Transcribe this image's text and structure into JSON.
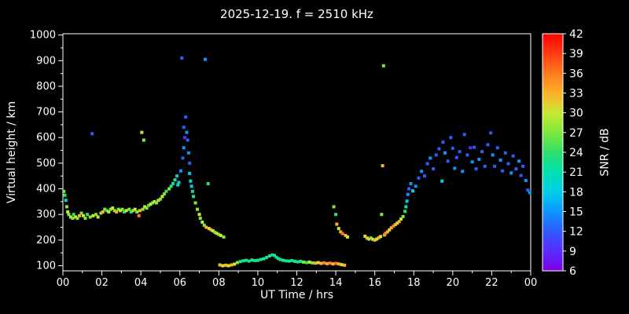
{
  "colors": {
    "background": "#000000",
    "axis": "#ffffff",
    "text": "#ffffff"
  },
  "chart_data": {
    "type": "scatter",
    "title": "2025-12-19. f = 2510 kHz",
    "xlabel": "UT Time / hrs",
    "ylabel": "Virtual height / km",
    "xlim": [
      0,
      24
    ],
    "ylim": [
      80,
      1005
    ],
    "x_ticks": {
      "hours": [
        0,
        2,
        4,
        6,
        8,
        10,
        12,
        14,
        16,
        18,
        20,
        22,
        24
      ],
      "labels": [
        "00",
        "02",
        "04",
        "06",
        "08",
        "10",
        "12",
        "14",
        "16",
        "18",
        "20",
        "22",
        "00"
      ]
    },
    "y_ticks": [
      100,
      200,
      300,
      400,
      500,
      600,
      700,
      800,
      900,
      1000
    ],
    "colorbar": {
      "label": "SNR / dB",
      "min": 6,
      "max": 42,
      "ticks": [
        6,
        9,
        12,
        15,
        18,
        21,
        24,
        27,
        30,
        33,
        36,
        39,
        42
      ],
      "stops": [
        {
          "v": 6,
          "c": "#7d00e0"
        },
        {
          "v": 9,
          "c": "#5a2bff"
        },
        {
          "v": 12,
          "c": "#2e5bff"
        },
        {
          "v": 15,
          "c": "#0b96ff"
        },
        {
          "v": 18,
          "c": "#00cfe8"
        },
        {
          "v": 21,
          "c": "#00e0b0"
        },
        {
          "v": 24,
          "c": "#2ce06a"
        },
        {
          "v": 27,
          "c": "#7fe83c"
        },
        {
          "v": 30,
          "c": "#c8e832"
        },
        {
          "v": 33,
          "c": "#ffb02a"
        },
        {
          "v": 36,
          "c": "#ff7a1e"
        },
        {
          "v": 39,
          "c": "#ff3b14"
        },
        {
          "v": 42,
          "c": "#ff0000"
        }
      ]
    },
    "points": [
      [
        0.05,
        390,
        27
      ],
      [
        0.1,
        375,
        24
      ],
      [
        0.15,
        355,
        21
      ],
      [
        0.2,
        330,
        27
      ],
      [
        0.25,
        310,
        30
      ],
      [
        0.3,
        300,
        27
      ],
      [
        0.4,
        290,
        30
      ],
      [
        0.5,
        285,
        27
      ],
      [
        0.55,
        300,
        24
      ],
      [
        0.65,
        290,
        30
      ],
      [
        0.75,
        285,
        27
      ],
      [
        0.85,
        295,
        33
      ],
      [
        0.95,
        305,
        27
      ],
      [
        1.05,
        295,
        30
      ],
      [
        1.15,
        285,
        27
      ],
      [
        1.25,
        300,
        24
      ],
      [
        1.4,
        290,
        27
      ],
      [
        1.5,
        615,
        12
      ],
      [
        1.55,
        295,
        30
      ],
      [
        1.7,
        300,
        27
      ],
      [
        1.8,
        290,
        30
      ],
      [
        1.95,
        305,
        27
      ],
      [
        2.05,
        310,
        33
      ],
      [
        2.15,
        320,
        27
      ],
      [
        2.25,
        315,
        24
      ],
      [
        2.35,
        310,
        30
      ],
      [
        2.45,
        320,
        27
      ],
      [
        2.55,
        325,
        30
      ],
      [
        2.65,
        315,
        27
      ],
      [
        2.75,
        310,
        33
      ],
      [
        2.85,
        320,
        27
      ],
      [
        2.95,
        315,
        30
      ],
      [
        3.05,
        320,
        27
      ],
      [
        3.15,
        310,
        24
      ],
      [
        3.25,
        315,
        30
      ],
      [
        3.4,
        320,
        27
      ],
      [
        3.5,
        310,
        24
      ],
      [
        3.6,
        315,
        27
      ],
      [
        3.7,
        320,
        30
      ],
      [
        3.8,
        310,
        27
      ],
      [
        3.9,
        295,
        36
      ],
      [
        3.95,
        315,
        33
      ],
      [
        4.05,
        620,
        30
      ],
      [
        4.15,
        590,
        27
      ],
      [
        4.1,
        320,
        27
      ],
      [
        4.2,
        330,
        30
      ],
      [
        4.3,
        325,
        27
      ],
      [
        4.4,
        335,
        24
      ],
      [
        4.5,
        340,
        30
      ],
      [
        4.6,
        345,
        27
      ],
      [
        4.7,
        350,
        30
      ],
      [
        4.8,
        345,
        27
      ],
      [
        4.9,
        355,
        30
      ],
      [
        5.0,
        360,
        27
      ],
      [
        5.1,
        370,
        30
      ],
      [
        5.2,
        380,
        27
      ],
      [
        5.3,
        390,
        24
      ],
      [
        5.45,
        400,
        27
      ],
      [
        5.55,
        410,
        24
      ],
      [
        5.65,
        420,
        21
      ],
      [
        5.75,
        435,
        24
      ],
      [
        5.85,
        450,
        18
      ],
      [
        5.9,
        415,
        21
      ],
      [
        5.95,
        425,
        18
      ],
      [
        6.05,
        470,
        15
      ],
      [
        6.1,
        910,
        12
      ],
      [
        6.15,
        520,
        12
      ],
      [
        6.2,
        560,
        15
      ],
      [
        6.2,
        640,
        12
      ],
      [
        6.25,
        600,
        9
      ],
      [
        6.3,
        680,
        12
      ],
      [
        6.35,
        620,
        15
      ],
      [
        6.4,
        590,
        12
      ],
      [
        6.45,
        540,
        15
      ],
      [
        6.5,
        500,
        12
      ],
      [
        6.5,
        460,
        18
      ],
      [
        6.55,
        430,
        21
      ],
      [
        6.6,
        410,
        18
      ],
      [
        7.3,
        905,
        15
      ],
      [
        6.65,
        390,
        21
      ],
      [
        6.7,
        370,
        24
      ],
      [
        6.8,
        345,
        27
      ],
      [
        6.9,
        320,
        27
      ],
      [
        7.0,
        300,
        30
      ],
      [
        7.05,
        285,
        27
      ],
      [
        7.15,
        270,
        30
      ],
      [
        7.25,
        258,
        27
      ],
      [
        7.35,
        250,
        33
      ],
      [
        7.45,
        420,
        24
      ],
      [
        7.5,
        245,
        30
      ],
      [
        7.6,
        240,
        33
      ],
      [
        7.7,
        236,
        30
      ],
      [
        7.8,
        230,
        27
      ],
      [
        7.9,
        226,
        30
      ],
      [
        8.0,
        222,
        27
      ],
      [
        8.1,
        218,
        30
      ],
      [
        8.25,
        212,
        27
      ],
      [
        8.05,
        103,
        33
      ],
      [
        8.2,
        100,
        30
      ],
      [
        8.35,
        102,
        33
      ],
      [
        8.5,
        100,
        30
      ],
      [
        8.65,
        103,
        33
      ],
      [
        8.8,
        106,
        30
      ],
      [
        8.95,
        112,
        27
      ],
      [
        9.1,
        116,
        24
      ],
      [
        9.25,
        119,
        21
      ],
      [
        9.4,
        121,
        24
      ],
      [
        9.55,
        118,
        21
      ],
      [
        9.7,
        122,
        24
      ],
      [
        9.85,
        120,
        21
      ],
      [
        10.0,
        121,
        24
      ],
      [
        10.15,
        124,
        21
      ],
      [
        10.3,
        127,
        24
      ],
      [
        10.45,
        132,
        21
      ],
      [
        10.6,
        138,
        24
      ],
      [
        10.75,
        142,
        21
      ],
      [
        10.85,
        140,
        24
      ],
      [
        10.95,
        133,
        21
      ],
      [
        11.05,
        128,
        24
      ],
      [
        11.15,
        124,
        21
      ],
      [
        11.3,
        121,
        24
      ],
      [
        11.45,
        119,
        21
      ],
      [
        11.6,
        118,
        24
      ],
      [
        11.75,
        120,
        21
      ],
      [
        11.9,
        117,
        24
      ],
      [
        12.05,
        115,
        21
      ],
      [
        12.2,
        117,
        24
      ],
      [
        12.35,
        114,
        27
      ],
      [
        12.5,
        112,
        24
      ],
      [
        12.65,
        114,
        30
      ],
      [
        12.8,
        111,
        27
      ],
      [
        12.95,
        110,
        33
      ],
      [
        13.1,
        112,
        30
      ],
      [
        13.25,
        109,
        33
      ],
      [
        13.4,
        111,
        36
      ],
      [
        13.55,
        108,
        33
      ],
      [
        13.7,
        110,
        36
      ],
      [
        13.85,
        107,
        33
      ],
      [
        14.0,
        109,
        36
      ],
      [
        14.15,
        107,
        33
      ],
      [
        14.3,
        104,
        30
      ],
      [
        14.45,
        102,
        33
      ],
      [
        13.9,
        330,
        27
      ],
      [
        14.0,
        300,
        24
      ],
      [
        14.05,
        262,
        33
      ],
      [
        14.15,
        245,
        30
      ],
      [
        14.25,
        232,
        33
      ],
      [
        14.35,
        225,
        36
      ],
      [
        14.5,
        218,
        33
      ],
      [
        14.6,
        212,
        30
      ],
      [
        15.5,
        215,
        30
      ],
      [
        15.6,
        208,
        33
      ],
      [
        15.7,
        204,
        30
      ],
      [
        15.8,
        208,
        27
      ],
      [
        15.9,
        203,
        30
      ],
      [
        16.0,
        200,
        33
      ],
      [
        16.1,
        204,
        30
      ],
      [
        16.2,
        209,
        33
      ],
      [
        16.3,
        214,
        30
      ],
      [
        16.35,
        300,
        27
      ],
      [
        16.4,
        490,
        33
      ],
      [
        16.45,
        880,
        27
      ],
      [
        16.5,
        220,
        33
      ],
      [
        16.55,
        226,
        36
      ],
      [
        16.65,
        232,
        33
      ],
      [
        16.75,
        240,
        30
      ],
      [
        16.85,
        248,
        33
      ],
      [
        16.95,
        254,
        36
      ],
      [
        17.05,
        260,
        33
      ],
      [
        17.15,
        266,
        30
      ],
      [
        17.25,
        272,
        33
      ],
      [
        17.35,
        282,
        30
      ],
      [
        17.45,
        292,
        27
      ],
      [
        17.55,
        312,
        24
      ],
      [
        17.6,
        330,
        21
      ],
      [
        17.65,
        352,
        18
      ],
      [
        17.7,
        378,
        15
      ],
      [
        17.75,
        400,
        12
      ],
      [
        17.85,
        420,
        15
      ],
      [
        17.95,
        392,
        18
      ],
      [
        18.1,
        410,
        15
      ],
      [
        18.25,
        442,
        12
      ],
      [
        18.4,
        468,
        15
      ],
      [
        18.55,
        450,
        12
      ],
      [
        18.7,
        498,
        12
      ],
      [
        18.85,
        520,
        15
      ],
      [
        19.0,
        478,
        12
      ],
      [
        19.15,
        532,
        12
      ],
      [
        19.3,
        556,
        12
      ],
      [
        19.45,
        430,
        18
      ],
      [
        19.5,
        582,
        12
      ],
      [
        19.6,
        540,
        15
      ],
      [
        19.75,
        508,
        12
      ],
      [
        19.9,
        600,
        12
      ],
      [
        20.0,
        558,
        12
      ],
      [
        20.1,
        480,
        15
      ],
      [
        20.2,
        522,
        12
      ],
      [
        20.35,
        545,
        12
      ],
      [
        20.5,
        468,
        15
      ],
      [
        20.6,
        612,
        12
      ],
      [
        20.75,
        532,
        12
      ],
      [
        20.9,
        560,
        9
      ],
      [
        21.0,
        505,
        15
      ],
      [
        21.1,
        562,
        12
      ],
      [
        21.2,
        478,
        12
      ],
      [
        21.35,
        515,
        15
      ],
      [
        21.5,
        545,
        12
      ],
      [
        21.65,
        488,
        12
      ],
      [
        21.8,
        572,
        12
      ],
      [
        21.95,
        618,
        12
      ],
      [
        22.05,
        532,
        15
      ],
      [
        22.15,
        488,
        12
      ],
      [
        22.3,
        560,
        12
      ],
      [
        22.45,
        512,
        15
      ],
      [
        22.55,
        470,
        12
      ],
      [
        22.7,
        540,
        12
      ],
      [
        22.85,
        498,
        12
      ],
      [
        23.0,
        462,
        15
      ],
      [
        23.1,
        528,
        12
      ],
      [
        23.25,
        478,
        12
      ],
      [
        23.4,
        508,
        15
      ],
      [
        23.5,
        452,
        12
      ],
      [
        23.6,
        488,
        12
      ],
      [
        23.75,
        432,
        15
      ],
      [
        23.85,
        395,
        12
      ],
      [
        23.95,
        385,
        15
      ]
    ]
  }
}
